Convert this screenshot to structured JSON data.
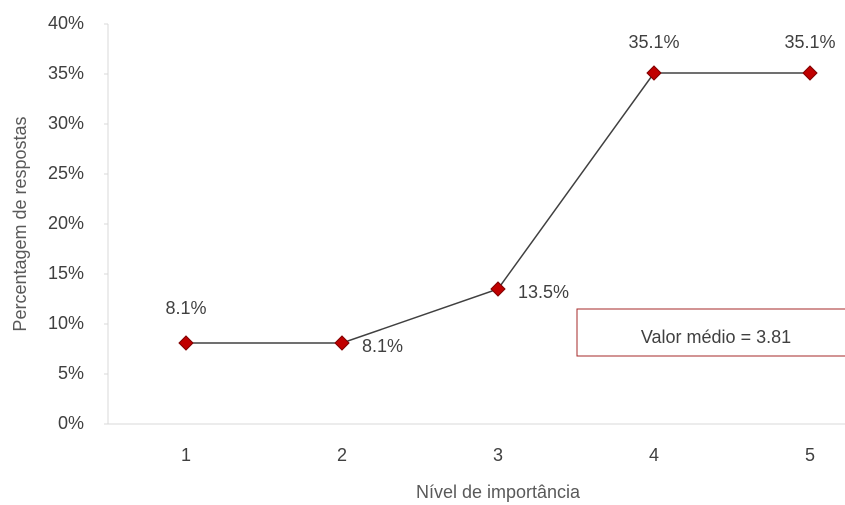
{
  "chart_data": {
    "type": "line",
    "x_label": "Nível de importância",
    "y_label": "Percentagem de respostas",
    "categories": [
      "1",
      "2",
      "3",
      "4",
      "5"
    ],
    "series": [
      {
        "name": "Percentagem de respostas",
        "color": "#c00000",
        "values": [
          8.1,
          8.1,
          13.5,
          35.1,
          35.1
        ],
        "value_labels": [
          "8.1%",
          "8.1%",
          "13.5%",
          "35.1%",
          "35.1%"
        ]
      }
    ],
    "ylim": [
      0,
      40
    ],
    "yticks": [
      {
        "value": 0,
        "label": "0%"
      },
      {
        "value": 5,
        "label": "5%"
      },
      {
        "value": 10,
        "label": "10%"
      },
      {
        "value": 15,
        "label": "15%"
      },
      {
        "value": 20,
        "label": "20%"
      },
      {
        "value": 25,
        "label": "25%"
      },
      {
        "value": 30,
        "label": "30%"
      },
      {
        "value": 35,
        "label": "35%"
      },
      {
        "value": 40,
        "label": "40%"
      }
    ],
    "annotation": "Valor médio = 3.81",
    "grid": false
  }
}
